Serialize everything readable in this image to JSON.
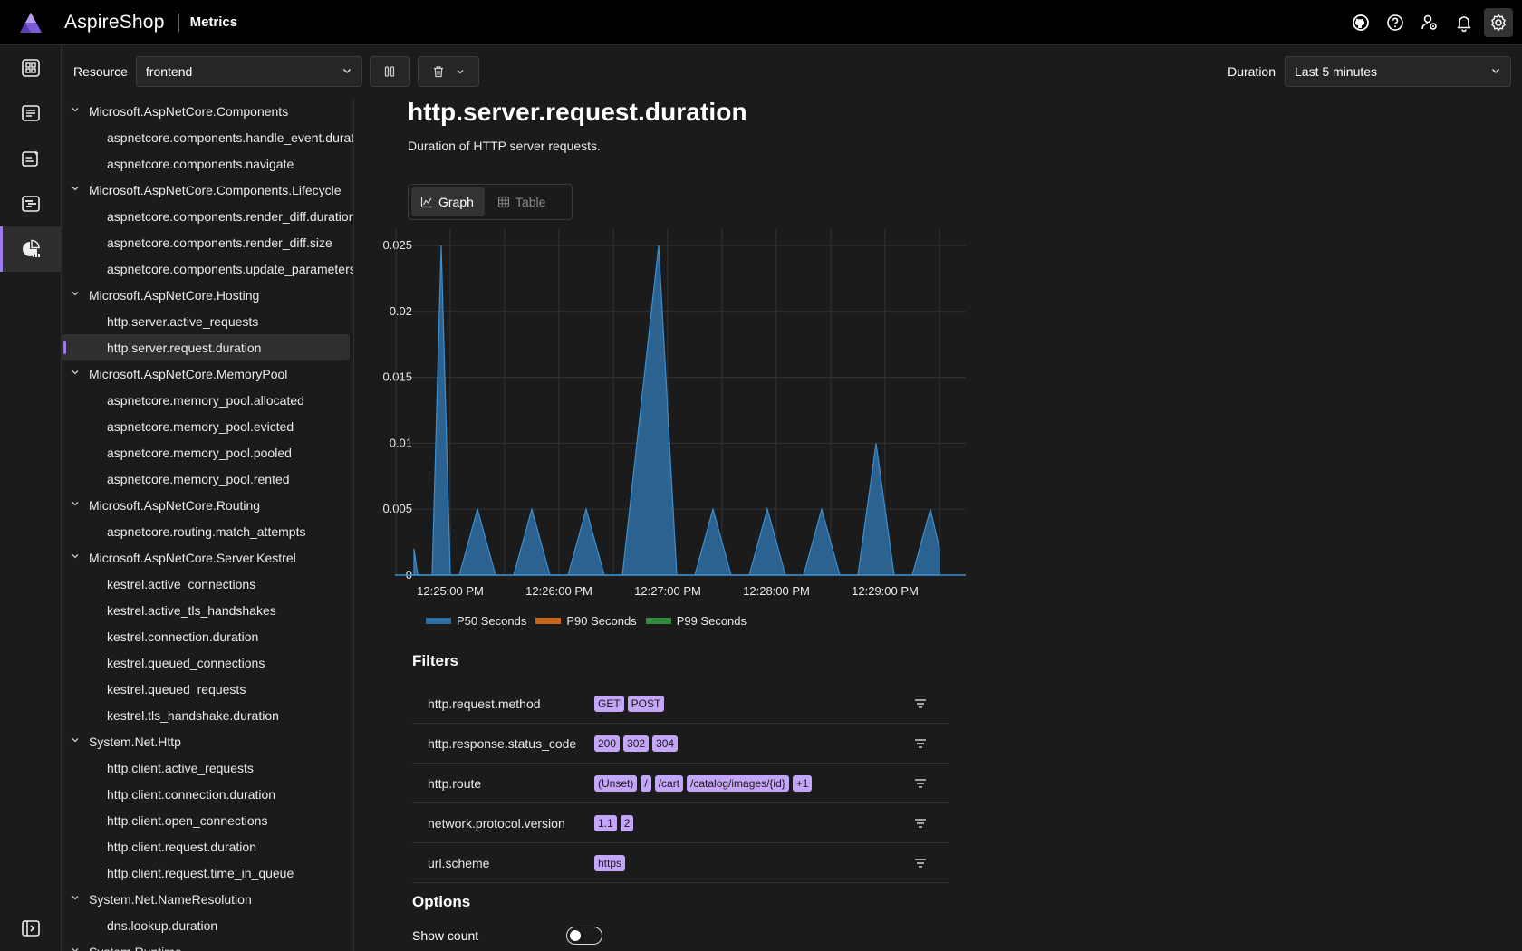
{
  "header": {
    "app_title": "AspireShop",
    "page_name": "Metrics",
    "icons": [
      "github-icon",
      "help-icon",
      "user-settings-icon",
      "notifications-icon",
      "settings-icon"
    ]
  },
  "rail": {
    "items": [
      "resources-icon",
      "console-logs-icon",
      "structured-logs-icon",
      "traces-icon",
      "metrics-icon"
    ],
    "active": "metrics-icon",
    "bottom": "collapse-nav-icon"
  },
  "toolbar": {
    "resource_label": "Resource",
    "resource_value": "frontend",
    "duration_label": "Duration",
    "duration_value": "Last 5 minutes"
  },
  "tree": [
    {
      "type": "group",
      "label": "Microsoft.AspNetCore.Components"
    },
    {
      "type": "leaf",
      "label": "aspnetcore.components.handle_event.duration"
    },
    {
      "type": "leaf",
      "label": "aspnetcore.components.navigate"
    },
    {
      "type": "group",
      "label": "Microsoft.AspNetCore.Components.Lifecycle"
    },
    {
      "type": "leaf",
      "label": "aspnetcore.components.render_diff.duration"
    },
    {
      "type": "leaf",
      "label": "aspnetcore.components.render_diff.size"
    },
    {
      "type": "leaf",
      "label": "aspnetcore.components.update_parameters.duration"
    },
    {
      "type": "group",
      "label": "Microsoft.AspNetCore.Hosting"
    },
    {
      "type": "leaf",
      "label": "http.server.active_requests"
    },
    {
      "type": "leaf",
      "label": "http.server.request.duration",
      "selected": true
    },
    {
      "type": "group",
      "label": "Microsoft.AspNetCore.MemoryPool"
    },
    {
      "type": "leaf",
      "label": "aspnetcore.memory_pool.allocated"
    },
    {
      "type": "leaf",
      "label": "aspnetcore.memory_pool.evicted"
    },
    {
      "type": "leaf",
      "label": "aspnetcore.memory_pool.pooled"
    },
    {
      "type": "leaf",
      "label": "aspnetcore.memory_pool.rented"
    },
    {
      "type": "group",
      "label": "Microsoft.AspNetCore.Routing"
    },
    {
      "type": "leaf",
      "label": "aspnetcore.routing.match_attempts"
    },
    {
      "type": "group",
      "label": "Microsoft.AspNetCore.Server.Kestrel"
    },
    {
      "type": "leaf",
      "label": "kestrel.active_connections"
    },
    {
      "type": "leaf",
      "label": "kestrel.active_tls_handshakes"
    },
    {
      "type": "leaf",
      "label": "kestrel.connection.duration"
    },
    {
      "type": "leaf",
      "label": "kestrel.queued_connections"
    },
    {
      "type": "leaf",
      "label": "kestrel.queued_requests"
    },
    {
      "type": "leaf",
      "label": "kestrel.tls_handshake.duration"
    },
    {
      "type": "group",
      "label": "System.Net.Http"
    },
    {
      "type": "leaf",
      "label": "http.client.active_requests"
    },
    {
      "type": "leaf",
      "label": "http.client.connection.duration"
    },
    {
      "type": "leaf",
      "label": "http.client.open_connections"
    },
    {
      "type": "leaf",
      "label": "http.client.request.duration"
    },
    {
      "type": "leaf",
      "label": "http.client.request.time_in_queue"
    },
    {
      "type": "group",
      "label": "System.Net.NameResolution"
    },
    {
      "type": "leaf",
      "label": "dns.lookup.duration"
    },
    {
      "type": "group",
      "label": "System.Runtime"
    }
  ],
  "metric": {
    "title": "http.server.request.duration",
    "description": "Duration of HTTP server requests."
  },
  "tabs": {
    "graph": "Graph",
    "table": "Table"
  },
  "chart_data": {
    "type": "area",
    "ylim": [
      0,
      0.025
    ],
    "yticks": [
      "0",
      "0.005",
      "0.01",
      "0.015",
      "0.02",
      "0.025"
    ],
    "xticks": [
      "12:25:00 PM",
      "12:26:00 PM",
      "12:27:00 PM",
      "12:28:00 PM",
      "12:29:00 PM"
    ],
    "grid": true,
    "series": [
      {
        "name": "P50 Seconds",
        "color": "#2e6fa3",
        "points": [
          [
            "12:24:40 PM",
            0.002
          ],
          [
            "12:24:42 PM",
            0
          ],
          [
            "12:24:50 PM",
            0
          ],
          [
            "12:24:55 PM",
            0.025
          ],
          [
            "12:25:00 PM",
            0
          ],
          [
            "12:25:05 PM",
            0
          ],
          [
            "12:25:15 PM",
            0.005
          ],
          [
            "12:25:25 PM",
            0
          ],
          [
            "12:25:35 PM",
            0
          ],
          [
            "12:25:45 PM",
            0.005
          ],
          [
            "12:25:55 PM",
            0
          ],
          [
            "12:26:05 PM",
            0
          ],
          [
            "12:26:15 PM",
            0.005
          ],
          [
            "12:26:25 PM",
            0
          ],
          [
            "12:26:35 PM",
            0
          ],
          [
            "12:26:55 PM",
            0.025
          ],
          [
            "12:27:05 PM",
            0
          ],
          [
            "12:27:15 PM",
            0
          ],
          [
            "12:27:25 PM",
            0.005
          ],
          [
            "12:27:35 PM",
            0
          ],
          [
            "12:27:45 PM",
            0
          ],
          [
            "12:27:55 PM",
            0.005
          ],
          [
            "12:28:05 PM",
            0
          ],
          [
            "12:28:15 PM",
            0
          ],
          [
            "12:28:25 PM",
            0.005
          ],
          [
            "12:28:35 PM",
            0
          ],
          [
            "12:28:45 PM",
            0
          ],
          [
            "12:28:55 PM",
            0.01
          ],
          [
            "12:29:05 PM",
            0
          ],
          [
            "12:29:15 PM",
            0
          ],
          [
            "12:29:25 PM",
            0.005
          ],
          [
            "12:29:30 PM",
            0.002
          ]
        ]
      },
      {
        "name": "P90 Seconds",
        "color": "#c8661a",
        "points": []
      },
      {
        "name": "P99 Seconds",
        "color": "#2e8b3a",
        "points": []
      }
    ]
  },
  "filters": {
    "title": "Filters",
    "rows": [
      {
        "name": "http.request.method",
        "values": [
          "GET",
          "POST"
        ]
      },
      {
        "name": "http.response.status_code",
        "values": [
          "200",
          "302",
          "304"
        ]
      },
      {
        "name": "http.route",
        "values": [
          "(Unset)",
          "/",
          "/cart",
          "/catalog/images/{id}",
          "+1"
        ]
      },
      {
        "name": "network.protocol.version",
        "values": [
          "1.1",
          "2"
        ]
      },
      {
        "name": "url.scheme",
        "values": [
          "https"
        ]
      }
    ]
  },
  "options": {
    "title": "Options",
    "show_count_label": "Show count",
    "show_count": false
  }
}
